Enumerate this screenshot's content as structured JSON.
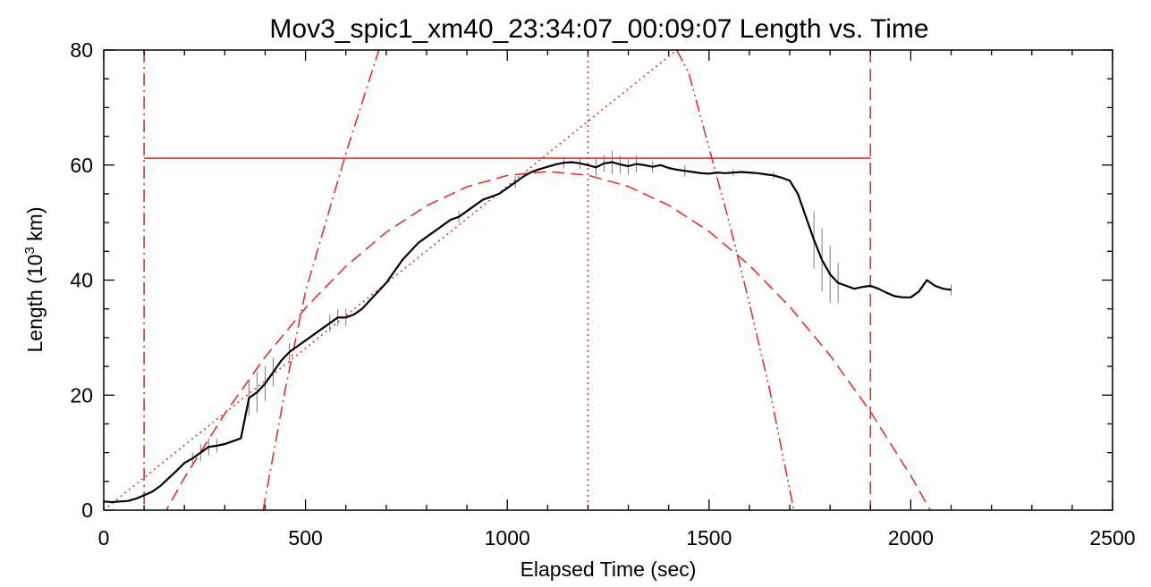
{
  "chart_data": {
    "type": "line",
    "title": "Mov3_spic1_xm40_23:34:07_00:09:07 Length vs. Time",
    "xlabel": "Elapsed Time (sec)",
    "ylabel_prefix": "Length (10",
    "ylabel_sup": "3",
    "ylabel_suffix": " km)",
    "xlim": [
      0,
      2500
    ],
    "ylim": [
      0,
      80
    ],
    "xticks": [
      "0",
      "500",
      "1000",
      "1500",
      "2000",
      "2500"
    ],
    "yticks": [
      "0",
      "20",
      "40",
      "60",
      "80"
    ],
    "grid": false,
    "colors": {
      "data": "#000000",
      "fit": "#e0302a",
      "errorbar": "#7a7a7a"
    },
    "series": [
      {
        "style": "solid",
        "x": [
          0,
          20,
          40,
          60,
          80,
          100,
          120,
          140,
          160,
          180,
          200,
          220,
          240,
          260,
          280,
          300,
          320,
          340,
          360,
          380,
          400,
          420,
          440,
          460,
          480,
          500,
          520,
          540,
          560,
          580,
          600,
          620,
          640,
          660,
          680,
          700,
          720,
          740,
          760,
          780,
          800,
          820,
          840,
          860,
          880,
          900,
          920,
          940,
          960,
          980,
          1000,
          1020,
          1040,
          1060,
          1080,
          1100,
          1120,
          1140,
          1160,
          1180,
          1200,
          1220,
          1240,
          1260,
          1280,
          1300,
          1320,
          1340,
          1360,
          1380,
          1400,
          1420,
          1440,
          1460,
          1480,
          1500,
          1520,
          1540,
          1560,
          1580,
          1600,
          1620,
          1640,
          1660,
          1680,
          1700,
          1720,
          1740,
          1760,
          1780,
          1800,
          1820,
          1840,
          1860,
          1880,
          1900,
          1920,
          1940,
          1960,
          1980,
          2000,
          2020,
          2040,
          2060,
          2080,
          2100
        ],
        "y": [
          1.5,
          1.4,
          1.5,
          1.6,
          2.0,
          2.6,
          3.2,
          4.2,
          5.5,
          6.8,
          8.2,
          9.0,
          10.0,
          11.0,
          11.2,
          11.5,
          12.0,
          12.5,
          19.5,
          20.5,
          22.0,
          24.0,
          26.0,
          27.5,
          28.5,
          29.5,
          30.5,
          31.5,
          32.5,
          33.5,
          33.5,
          34.0,
          35.0,
          36.5,
          38.0,
          39.5,
          41.5,
          43.5,
          45.0,
          46.5,
          47.5,
          48.5,
          49.5,
          50.5,
          51.0,
          52.0,
          53.0,
          54.0,
          54.5,
          55.0,
          56.0,
          57.0,
          58.0,
          58.8,
          59.3,
          59.7,
          60.1,
          60.4,
          60.5,
          60.3,
          60.0,
          59.6,
          60.3,
          60.5,
          60.1,
          59.8,
          60.2,
          60.0,
          59.7,
          60.0,
          59.5,
          59.2,
          59.0,
          58.8,
          58.6,
          58.5,
          58.7,
          58.6,
          58.7,
          58.8,
          58.7,
          58.6,
          58.4,
          58.2,
          57.8,
          57.3,
          55.0,
          51.0,
          47.0,
          43.5,
          41.0,
          39.5,
          39.0,
          38.5,
          38.8,
          39.0,
          38.5,
          37.8,
          37.2,
          37.0,
          37.0,
          38.0,
          40.0,
          39.0,
          38.5,
          38.3
        ],
        "err_x": [
          220,
          240,
          260,
          280,
          360,
          380,
          400,
          420,
          460,
          560,
          580,
          600,
          880,
          1020,
          1140,
          1180,
          1220,
          1240,
          1260,
          1280,
          1300,
          1320,
          1360,
          1440,
          1560,
          1660,
          1760,
          1780,
          1800,
          1820,
          2100
        ],
        "err_y": [
          1.0,
          1.5,
          1.5,
          1.2,
          3.0,
          3.5,
          3.0,
          2.5,
          1.5,
          1.5,
          1.5,
          1.5,
          1.0,
          1.0,
          1.0,
          1.0,
          1.5,
          1.5,
          2.0,
          1.5,
          1.5,
          1.5,
          1.0,
          1.0,
          0.6,
          0.6,
          5.0,
          5.5,
          5.0,
          3.5,
          1.0
        ]
      },
      {
        "style": "dashed",
        "x": [
          100,
          200,
          300,
          400,
          500,
          600,
          700,
          800,
          900,
          1000,
          1100,
          1200,
          1300,
          1400,
          1500,
          1600,
          1700,
          1800,
          1900,
          2000,
          2100
        ],
        "y": [
          -6.86,
          5.61,
          16.77,
          26.62,
          35.16,
          42.39,
          48.31,
          52.92,
          56.21,
          58.19,
          58.87,
          58.23,
          56.28,
          53.02,
          48.46,
          42.58,
          35.39,
          26.9,
          17.1,
          5.98,
          -6.44
        ]
      },
      {
        "style": "dotted",
        "x": [
          0,
          200,
          400,
          600,
          800,
          1000,
          1200,
          1420
        ],
        "y": [
          0,
          11.3,
          22.5,
          33.8,
          45.1,
          56.3,
          67.6,
          80
        ]
      },
      {
        "style": "dash-dot",
        "x": [
          395,
          450,
          500,
          550,
          600,
          650,
          700
        ],
        "y": [
          0,
          21,
          38,
          50,
          62,
          73,
          84
        ]
      },
      {
        "style": "dash-dot-dot",
        "x": [
          1420,
          1450,
          1500,
          1550,
          1600,
          1650,
          1710
        ],
        "y": [
          80,
          76,
          63,
          50,
          36,
          21,
          0
        ]
      }
    ],
    "reference_lines": {
      "vertical": [
        {
          "x": 100,
          "style": "dash-dot"
        },
        {
          "x": 1200,
          "style": "dotted"
        },
        {
          "x": 1900,
          "style": "dashed"
        }
      ],
      "horizontal": [
        {
          "y": 61.2,
          "x_start": 100,
          "x_end": 1900,
          "style": "solid"
        }
      ]
    }
  }
}
